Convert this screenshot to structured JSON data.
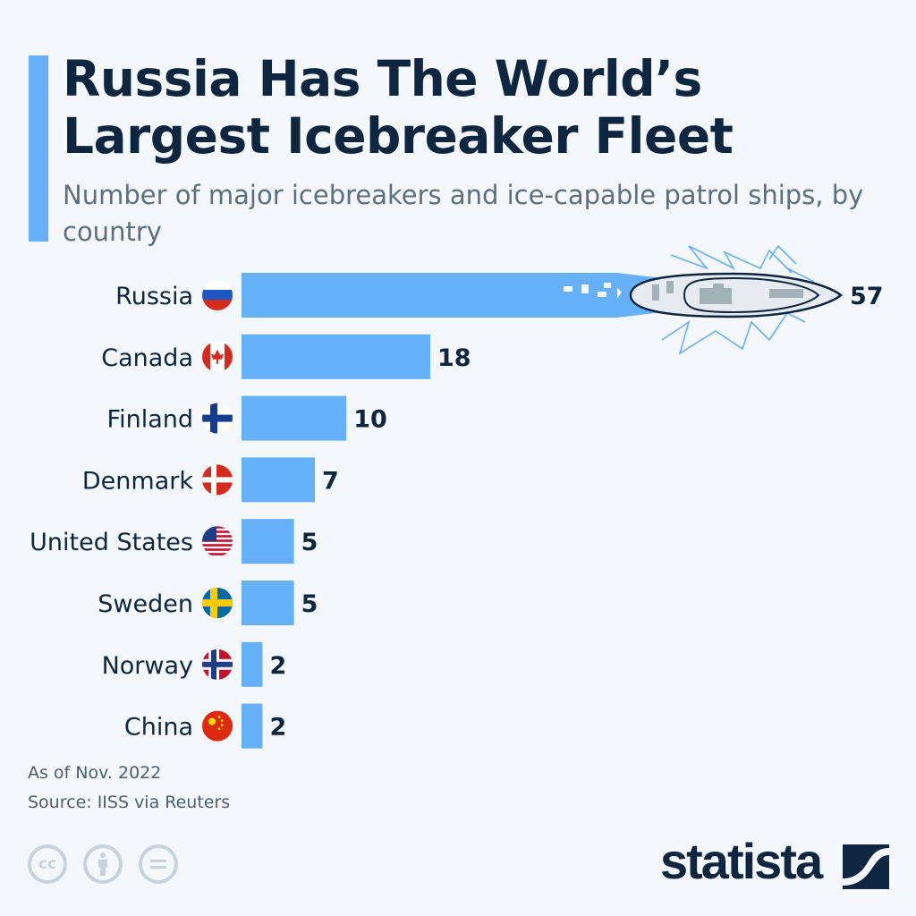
{
  "header": {
    "title": "Russia Has The World’s Largest Icebreaker Fleet",
    "subtitle": "Number of major icebreakers and ice-capable patrol ships, by country"
  },
  "chart_data": {
    "type": "bar",
    "orientation": "horizontal",
    "title": "Russia Has The World’s Largest Icebreaker Fleet",
    "subtitle": "Number of major icebreakers and ice-capable patrol ships, by country",
    "categories": [
      "Russia",
      "Canada",
      "Finland",
      "Denmark",
      "United States",
      "Sweden",
      "Norway",
      "China"
    ],
    "values": [
      57,
      18,
      10,
      7,
      5,
      5,
      2,
      2
    ],
    "flags": [
      "russia-flag",
      "canada-flag",
      "finland-flag",
      "denmark-flag",
      "usa-flag",
      "sweden-flag",
      "norway-flag",
      "china-flag"
    ],
    "bar_color": "#66b0f9",
    "xlim": [
      0,
      57
    ],
    "grid": false,
    "data_labels": true
  },
  "footer": {
    "note": "As of Nov. 2022",
    "source": "Source: IISS via Reuters",
    "logo": "statista",
    "license_icons": [
      "cc-icon",
      "by-icon",
      "nd-icon"
    ]
  },
  "colors": {
    "text": "#0f2640",
    "bar": "#66b0f9",
    "background": "#f4f7fb"
  }
}
